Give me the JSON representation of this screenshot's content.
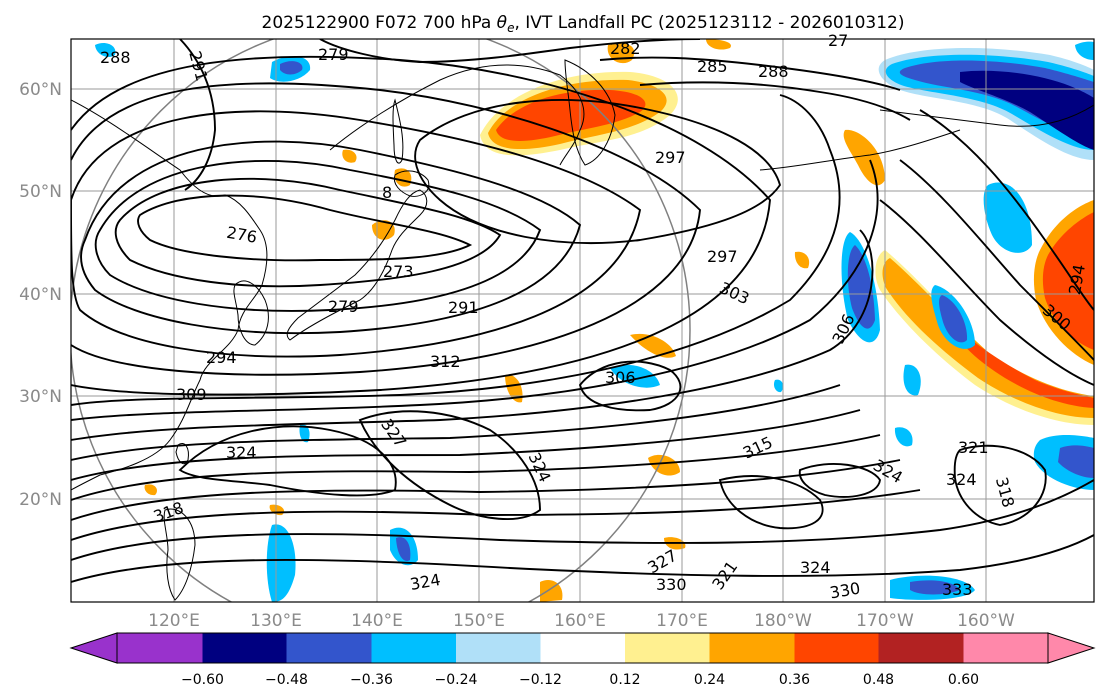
{
  "title": {
    "prefix": "2025122900 F072 700 hPa ",
    "symbol": "θ",
    "subscript": "e",
    "suffix": ", IVT Landfall PC (2025123112 - 2026010312)"
  },
  "map": {
    "lat_labels": [
      "60°N",
      "50°N",
      "40°N",
      "30°N",
      "20°N"
    ],
    "lon_labels": [
      "120°E",
      "130°E",
      "140°E",
      "150°E",
      "160°E",
      "170°E",
      "180°W",
      "170°W",
      "160°W"
    ],
    "contour_labels": [
      "288",
      "279",
      "291",
      "282",
      "285",
      "288",
      "297",
      "276",
      "273",
      "297",
      "279",
      "291",
      "303",
      "294",
      "312",
      "306",
      "309",
      "306",
      "294",
      "300",
      "315",
      "327",
      "324",
      "324",
      "321",
      "324",
      "324",
      "318",
      "318",
      "327",
      "330",
      "321",
      "324",
      "330",
      "333",
      "324",
      "8",
      "27"
    ],
    "colors": {
      "neg_060": "#9932cc",
      "neg_048": "#000080",
      "neg_036": "#3355cc",
      "neg_024": "#00bfff",
      "neg_012": "#b0e0f8",
      "pos_012": "#fff090",
      "pos_024": "#ffa500",
      "pos_036": "#ff4500",
      "pos_048": "#b22222",
      "pos_060": "#ff88aa"
    }
  },
  "colorbar": {
    "tick_labels": [
      "−0.60",
      "−0.48",
      "−0.36",
      "−0.24",
      "−0.12",
      "0.12",
      "0.24",
      "0.36",
      "0.48",
      "0.60"
    ],
    "bins": [
      "#9932cc",
      "#000080",
      "#3355cc",
      "#00bfff",
      "#b0e0f8",
      "#ffffff",
      "#fff090",
      "#ffa500",
      "#ff4500",
      "#b22222",
      "#ff88aa"
    ]
  }
}
